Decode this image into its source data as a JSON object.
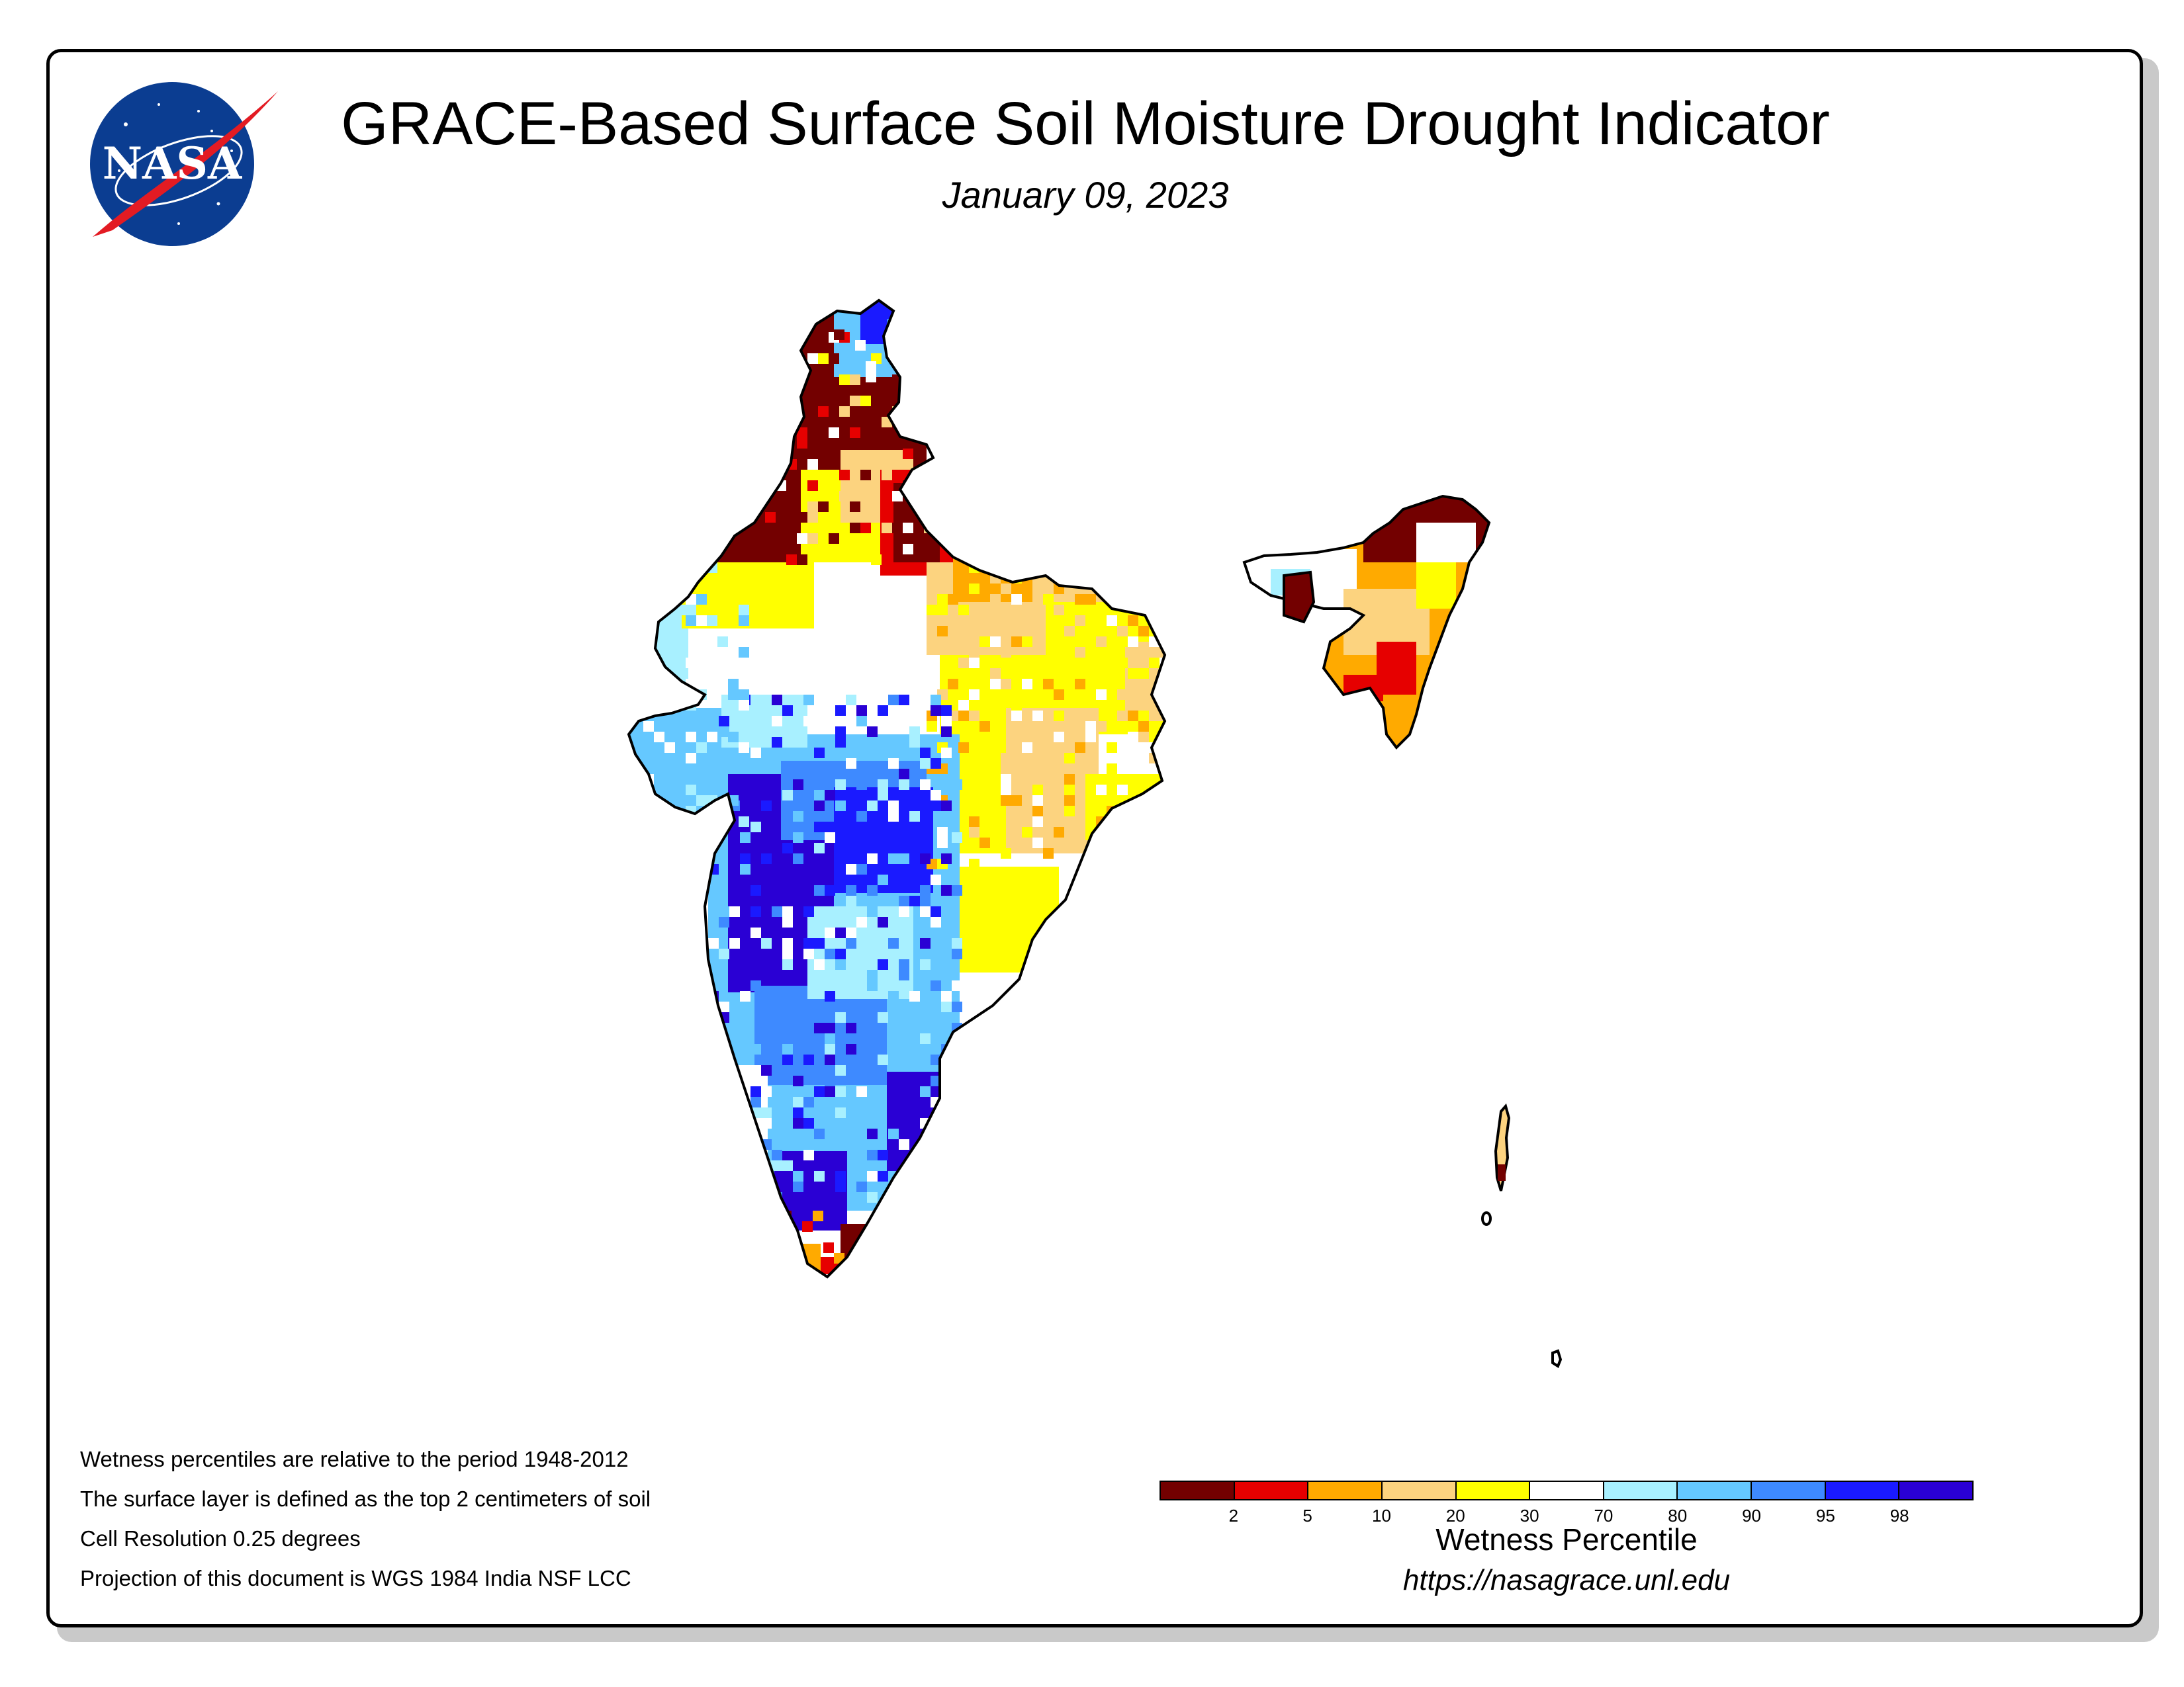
{
  "header": {
    "title": "GRACE-Based Surface Soil Moisture Drought Indicator",
    "date": "January 09, 2023"
  },
  "logo": {
    "text": "NASA",
    "icon": "nasa-meatball-logo"
  },
  "notes": [
    "Wetness percentiles are relative to the period 1948-2012",
    "The surface layer is defined as the top 2 centimeters of soil",
    "Cell Resolution 0.25 degrees",
    "Projection of this document is WGS 1984 India NSF LCC"
  ],
  "legend": {
    "title": "Wetness Percentile",
    "colors": [
      "#730000",
      "#e60000",
      "#ffaa00",
      "#fcd37f",
      "#ffff00",
      "#ffffff",
      "#a8f0ff",
      "#65c8ff",
      "#3e8aff",
      "#1a1aff",
      "#2a00d4"
    ],
    "ticks": [
      "2",
      "5",
      "10",
      "20",
      "30",
      "70",
      "80",
      "90",
      "95",
      "98"
    ]
  },
  "url": "https://nasagrace.unl.edu",
  "map": {
    "region": "India",
    "classes": {
      "c2": "#730000",
      "c5": "#e60000",
      "c10": "#ffaa00",
      "c20": "#fcd37f",
      "c30": "#ffff00",
      "c70": "#ffffff",
      "c80": "#a8f0ff",
      "c90": "#65c8ff",
      "c95": "#3e8aff",
      "c98": "#1a1aff",
      "c100": "#2a00d4"
    }
  }
}
